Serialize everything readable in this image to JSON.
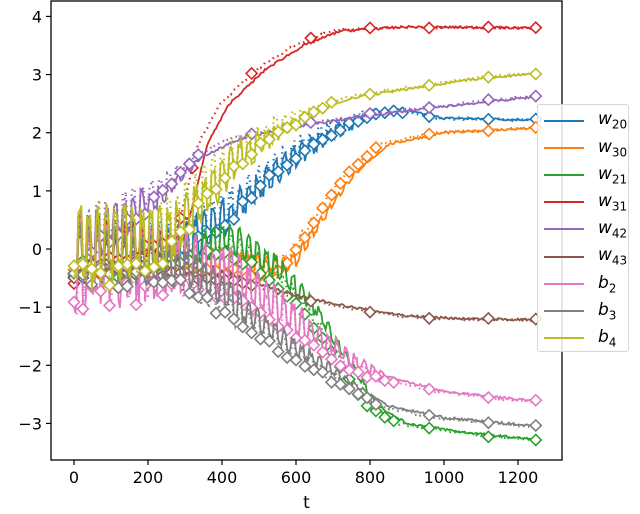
{
  "chart_data": {
    "type": "line",
    "title": "",
    "xlabel": "t",
    "ylabel": "",
    "xlim": [
      -60,
      1270
    ],
    "ylim": [
      -3.6,
      4.3
    ],
    "xticks": [
      0,
      200,
      400,
      600,
      800,
      1000,
      1200
    ],
    "xtick_labels": [
      "0",
      "200",
      "400",
      "600",
      "800",
      "1000",
      "1200"
    ],
    "yticks": [
      4,
      3,
      2,
      1,
      0,
      -1,
      -2,
      -3
    ],
    "ytick_labels": [
      "4",
      "3",
      "2",
      "1",
      "0",
      "−1",
      "−2",
      "−3"
    ],
    "grid": false,
    "legend_position": "right, outside-overlapping",
    "line_styles": [
      "solid",
      "dotted with diamond markers"
    ],
    "series": [
      {
        "name": "w20",
        "base": "w",
        "sub": "20",
        "color": "#1f77b4",
        "noise_until": 900,
        "noise_amp": 0.5,
        "keypoints": [
          [
            0,
            0
          ],
          [
            300,
            0.1
          ],
          [
            420,
            0.6
          ],
          [
            600,
            1.6
          ],
          [
            700,
            2.0
          ],
          [
            800,
            2.3
          ],
          [
            880,
            2.4
          ],
          [
            1000,
            2.25
          ],
          [
            1250,
            2.22
          ]
        ]
      },
      {
        "name": "w30",
        "base": "w",
        "sub": "30",
        "color": "#ff7f0e",
        "noise_until": 820,
        "noise_amp": 0.4,
        "keypoints": [
          [
            0,
            0
          ],
          [
            550,
            -0.3
          ],
          [
            600,
            -0.2
          ],
          [
            650,
            0.3
          ],
          [
            700,
            0.8
          ],
          [
            760,
            1.3
          ],
          [
            850,
            1.8
          ],
          [
            1000,
            2.0
          ],
          [
            1250,
            2.08
          ]
        ]
      },
      {
        "name": "w21",
        "base": "w",
        "sub": "21",
        "color": "#2ca02c",
        "noise_until": 880,
        "noise_amp": 0.45,
        "keypoints": [
          [
            0,
            0
          ],
          [
            300,
            -0.1
          ],
          [
            420,
            0.2
          ],
          [
            550,
            -0.3
          ],
          [
            650,
            -1.0
          ],
          [
            750,
            -2.0
          ],
          [
            820,
            -2.7
          ],
          [
            900,
            -3.0
          ],
          [
            1050,
            -3.15
          ],
          [
            1250,
            -3.28
          ]
        ]
      },
      {
        "name": "w31",
        "base": "w",
        "sub": "31",
        "color": "#d62728",
        "noise_until": 300,
        "noise_amp": 0.6,
        "keypoints": [
          [
            0,
            0
          ],
          [
            300,
            0.2
          ],
          [
            360,
            1.8
          ],
          [
            420,
            2.5
          ],
          [
            520,
            3.1
          ],
          [
            620,
            3.5
          ],
          [
            720,
            3.75
          ],
          [
            900,
            3.82
          ],
          [
            1250,
            3.8
          ]
        ]
      },
      {
        "name": "w42",
        "base": "w",
        "sub": "42",
        "color": "#9467bd",
        "noise_until": 350,
        "noise_amp": 0.5,
        "keypoints": [
          [
            0,
            0
          ],
          [
            250,
            1.0
          ],
          [
            350,
            1.6
          ],
          [
            450,
            1.9
          ],
          [
            600,
            2.1
          ],
          [
            800,
            2.3
          ],
          [
            1000,
            2.45
          ],
          [
            1250,
            2.62
          ]
        ]
      },
      {
        "name": "w43",
        "base": "w",
        "sub": "43",
        "color": "#8c564b",
        "noise_until": 500,
        "noise_amp": 0.4,
        "keypoints": [
          [
            0,
            0
          ],
          [
            300,
            -0.3
          ],
          [
            450,
            -0.5
          ],
          [
            600,
            -0.8
          ],
          [
            750,
            -1.0
          ],
          [
            900,
            -1.15
          ],
          [
            1050,
            -1.2
          ],
          [
            1250,
            -1.22
          ]
        ]
      },
      {
        "name": "b2",
        "base": "b",
        "sub": "2",
        "color": "#e377c2",
        "noise_until": 880,
        "noise_amp": 0.75,
        "keypoints": [
          [
            0,
            -0.3
          ],
          [
            300,
            -0.2
          ],
          [
            450,
            -0.5
          ],
          [
            600,
            -1.2
          ],
          [
            750,
            -1.9
          ],
          [
            850,
            -2.2
          ],
          [
            1000,
            -2.45
          ],
          [
            1250,
            -2.62
          ]
        ]
      },
      {
        "name": "b3",
        "base": "b",
        "sub": "3",
        "color": "#7f7f7f",
        "noise_until": 820,
        "noise_amp": 0.5,
        "keypoints": [
          [
            0,
            0
          ],
          [
            300,
            -0.3
          ],
          [
            450,
            -1.0
          ],
          [
            600,
            -1.7
          ],
          [
            750,
            -2.3
          ],
          [
            850,
            -2.7
          ],
          [
            1000,
            -2.9
          ],
          [
            1250,
            -3.05
          ]
        ]
      },
      {
        "name": "b4",
        "base": "b",
        "sub": "4",
        "color": "#bcbd22",
        "noise_until": 700,
        "noise_amp": 0.7,
        "keypoints": [
          [
            0,
            0
          ],
          [
            250,
            0.2
          ],
          [
            350,
            0.9
          ],
          [
            450,
            1.6
          ],
          [
            600,
            2.2
          ],
          [
            750,
            2.6
          ],
          [
            900,
            2.75
          ],
          [
            1050,
            2.9
          ],
          [
            1250,
            3.02
          ]
        ]
      }
    ]
  }
}
